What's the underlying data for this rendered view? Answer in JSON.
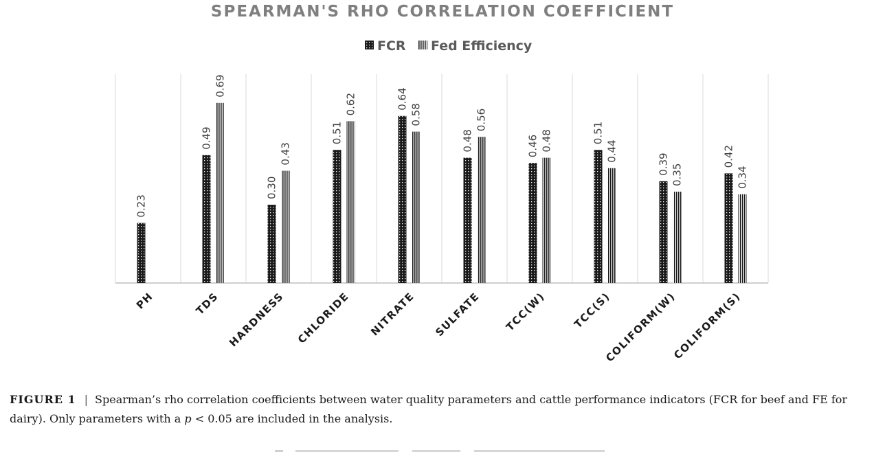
{
  "chart_data": {
    "type": "bar",
    "title": "SPEARMAN'S RHO CORRELATION COEFFICIENT",
    "categories": [
      "PH",
      "TDS",
      "HARDNESS",
      "CHLORIDE",
      "NITRATE",
      "SULFATE",
      "TCC(W)",
      "TCC(S)",
      "COLIFORM(W)",
      "COLIFORM(S)"
    ],
    "series": [
      {
        "name": "FCR",
        "pattern": "dotted",
        "color": "#1a1a1a",
        "values": [
          0.23,
          0.49,
          0.3,
          0.51,
          0.64,
          0.48,
          0.46,
          0.51,
          0.39,
          0.42
        ],
        "labels": [
          "0.23",
          "0.49",
          "0.30",
          "0.51",
          "0.64",
          "0.48",
          "0.46",
          "0.51",
          "0.39",
          "0.42"
        ]
      },
      {
        "name": "Fed Efficiency",
        "pattern": "vertical-lines",
        "color": "#1a1a1a",
        "values": [
          null,
          0.69,
          0.43,
          0.62,
          0.58,
          0.56,
          0.48,
          0.44,
          0.35,
          0.34
        ],
        "labels": [
          null,
          "0.69",
          "0.43",
          "0.62",
          "0.58",
          "0.56",
          "0.48",
          "0.44",
          "0.35",
          "0.34"
        ]
      }
    ],
    "ylim": [
      0,
      0.8
    ],
    "legend_position": "top-center",
    "grid": "vertical-category-separators"
  },
  "caption": {
    "figure_label": "FIGURE 1",
    "separator": "|",
    "text_before_p": "Spearman’s rho correlation coefficients between water quality parameters and cattle performance indicators (FCR for beef and FE for dairy). Only parameters with a ",
    "p_symbol": "p",
    "text_after_p": " < 0.05 are included in the analysis."
  }
}
